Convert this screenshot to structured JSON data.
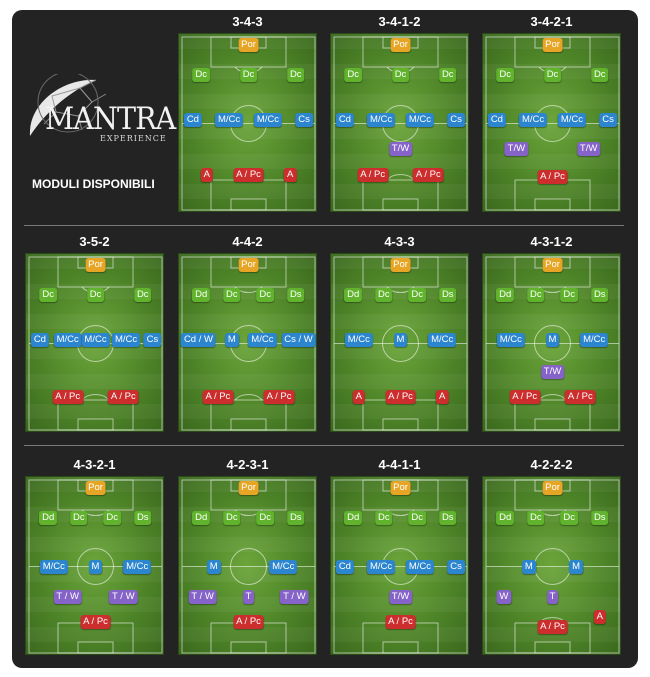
{
  "brand": {
    "logo_text": "MANTRA",
    "logo_subtext": "EXPERIENCE"
  },
  "heading": "MODULI DISPONIBILI",
  "colors": {
    "por": "#e7a526",
    "dc": "#61b32e",
    "mid": "#2c86cf",
    "tw": "#8563c9",
    "att": "#cc2e2e",
    "panel": "#232323",
    "grass": "#4c8227"
  },
  "formations": [
    {
      "name": "3-4-3",
      "rows": [
        {
          "y": 0.06,
          "roles": [
            {
              "label": "Por",
              "x": 0.5,
              "type": "por"
            }
          ]
        },
        {
          "y": 0.23,
          "roles": [
            {
              "label": "Dc",
              "x": 0.16,
              "type": "dc"
            },
            {
              "label": "Dc",
              "x": 0.5,
              "type": "dc"
            },
            {
              "label": "Dc",
              "x": 0.84,
              "type": "dc"
            }
          ]
        },
        {
          "y": 0.48,
          "roles": [
            {
              "label": "Cd",
              "x": 0.1,
              "type": "mid"
            },
            {
              "label": "M/Cc",
              "x": 0.36,
              "type": "mid"
            },
            {
              "label": "M/Cc",
              "x": 0.64,
              "type": "mid"
            },
            {
              "label": "Cs",
              "x": 0.9,
              "type": "mid"
            }
          ]
        },
        {
          "y": 0.79,
          "roles": [
            {
              "label": "A",
              "x": 0.2,
              "type": "att"
            },
            {
              "label": "A / Pc",
              "x": 0.5,
              "type": "att"
            },
            {
              "label": "A",
              "x": 0.8,
              "type": "att"
            }
          ]
        }
      ]
    },
    {
      "name": "3-4-1-2",
      "rows": [
        {
          "y": 0.06,
          "roles": [
            {
              "label": "Por",
              "x": 0.5,
              "type": "por"
            }
          ]
        },
        {
          "y": 0.23,
          "roles": [
            {
              "label": "Dc",
              "x": 0.16,
              "type": "dc"
            },
            {
              "label": "Dc",
              "x": 0.5,
              "type": "dc"
            },
            {
              "label": "Dc",
              "x": 0.84,
              "type": "dc"
            }
          ]
        },
        {
          "y": 0.48,
          "roles": [
            {
              "label": "Cd",
              "x": 0.1,
              "type": "mid"
            },
            {
              "label": "M/Cc",
              "x": 0.36,
              "type": "mid"
            },
            {
              "label": "M/Cc",
              "x": 0.64,
              "type": "mid"
            },
            {
              "label": "Cs",
              "x": 0.9,
              "type": "mid"
            }
          ]
        },
        {
          "y": 0.64,
          "roles": [
            {
              "label": "T/W",
              "x": 0.5,
              "type": "tw"
            }
          ]
        },
        {
          "y": 0.79,
          "roles": [
            {
              "label": "A / Pc",
              "x": 0.3,
              "type": "att"
            },
            {
              "label": "A / Pc",
              "x": 0.7,
              "type": "att"
            }
          ]
        }
      ]
    },
    {
      "name": "3-4-2-1",
      "rows": [
        {
          "y": 0.06,
          "roles": [
            {
              "label": "Por",
              "x": 0.5,
              "type": "por"
            }
          ]
        },
        {
          "y": 0.23,
          "roles": [
            {
              "label": "Dc",
              "x": 0.16,
              "type": "dc"
            },
            {
              "label": "Dc",
              "x": 0.5,
              "type": "dc"
            },
            {
              "label": "Dc",
              "x": 0.84,
              "type": "dc"
            }
          ]
        },
        {
          "y": 0.48,
          "roles": [
            {
              "label": "Cd",
              "x": 0.1,
              "type": "mid"
            },
            {
              "label": "M/Cc",
              "x": 0.36,
              "type": "mid"
            },
            {
              "label": "M/Cc",
              "x": 0.64,
              "type": "mid"
            },
            {
              "label": "Cs",
              "x": 0.9,
              "type": "mid"
            }
          ]
        },
        {
          "y": 0.64,
          "roles": [
            {
              "label": "T/W",
              "x": 0.24,
              "type": "tw"
            },
            {
              "label": "T/W",
              "x": 0.76,
              "type": "tw"
            }
          ]
        },
        {
          "y": 0.8,
          "roles": [
            {
              "label": "A / Pc",
              "x": 0.5,
              "type": "att"
            }
          ]
        }
      ]
    },
    {
      "name": "3-5-2",
      "rows": [
        {
          "y": 0.06,
          "roles": [
            {
              "label": "Por",
              "x": 0.5,
              "type": "por"
            }
          ]
        },
        {
          "y": 0.23,
          "roles": [
            {
              "label": "Dc",
              "x": 0.16,
              "type": "dc"
            },
            {
              "label": "Dc",
              "x": 0.5,
              "type": "dc"
            },
            {
              "label": "Dc",
              "x": 0.84,
              "type": "dc"
            }
          ]
        },
        {
          "y": 0.48,
          "roles": [
            {
              "label": "Cd",
              "x": 0.1,
              "type": "mid"
            },
            {
              "label": "M/Cc",
              "x": 0.3,
              "type": "mid"
            },
            {
              "label": "M/Cc",
              "x": 0.5,
              "type": "mid"
            },
            {
              "label": "M/Cc",
              "x": 0.72,
              "type": "mid"
            },
            {
              "label": "Cs",
              "x": 0.91,
              "type": "mid"
            }
          ]
        },
        {
          "y": 0.8,
          "roles": [
            {
              "label": "A / Pc",
              "x": 0.3,
              "type": "att"
            },
            {
              "label": "A / Pc",
              "x": 0.7,
              "type": "att"
            }
          ]
        }
      ]
    },
    {
      "name": "4-4-2",
      "rows": [
        {
          "y": 0.06,
          "roles": [
            {
              "label": "Por",
              "x": 0.5,
              "type": "por"
            }
          ]
        },
        {
          "y": 0.23,
          "roles": [
            {
              "label": "Dd",
              "x": 0.16,
              "type": "dc"
            },
            {
              "label": "Dc",
              "x": 0.38,
              "type": "dc"
            },
            {
              "label": "Dc",
              "x": 0.62,
              "type": "dc"
            },
            {
              "label": "Ds",
              "x": 0.84,
              "type": "dc"
            }
          ]
        },
        {
          "y": 0.48,
          "roles": [
            {
              "label": "Cd / W",
              "x": 0.14,
              "type": "mid"
            },
            {
              "label": "M",
              "x": 0.38,
              "type": "mid"
            },
            {
              "label": "M/Cc",
              "x": 0.6,
              "type": "mid"
            },
            {
              "label": "Cs / W",
              "x": 0.86,
              "type": "mid"
            }
          ]
        },
        {
          "y": 0.8,
          "roles": [
            {
              "label": "A / Pc",
              "x": 0.28,
              "type": "att"
            },
            {
              "label": "A / Pc",
              "x": 0.72,
              "type": "att"
            }
          ]
        }
      ]
    },
    {
      "name": "4-3-3",
      "rows": [
        {
          "y": 0.06,
          "roles": [
            {
              "label": "Por",
              "x": 0.5,
              "type": "por"
            }
          ]
        },
        {
          "y": 0.23,
          "roles": [
            {
              "label": "Dd",
              "x": 0.16,
              "type": "dc"
            },
            {
              "label": "Dc",
              "x": 0.38,
              "type": "dc"
            },
            {
              "label": "Dc",
              "x": 0.62,
              "type": "dc"
            },
            {
              "label": "Ds",
              "x": 0.84,
              "type": "dc"
            }
          ]
        },
        {
          "y": 0.48,
          "roles": [
            {
              "label": "M/Cc",
              "x": 0.2,
              "type": "mid"
            },
            {
              "label": "M",
              "x": 0.5,
              "type": "mid"
            },
            {
              "label": "M/Cc",
              "x": 0.8,
              "type": "mid"
            }
          ]
        },
        {
          "y": 0.8,
          "roles": [
            {
              "label": "A",
              "x": 0.2,
              "type": "att"
            },
            {
              "label": "A / Pc",
              "x": 0.5,
              "type": "att"
            },
            {
              "label": "A",
              "x": 0.8,
              "type": "att"
            }
          ]
        }
      ]
    },
    {
      "name": "4-3-1-2",
      "rows": [
        {
          "y": 0.06,
          "roles": [
            {
              "label": "Por",
              "x": 0.5,
              "type": "por"
            }
          ]
        },
        {
          "y": 0.23,
          "roles": [
            {
              "label": "Dd",
              "x": 0.16,
              "type": "dc"
            },
            {
              "label": "Dc",
              "x": 0.38,
              "type": "dc"
            },
            {
              "label": "Dc",
              "x": 0.62,
              "type": "dc"
            },
            {
              "label": "Ds",
              "x": 0.84,
              "type": "dc"
            }
          ]
        },
        {
          "y": 0.48,
          "roles": [
            {
              "label": "M/Cc",
              "x": 0.2,
              "type": "mid"
            },
            {
              "label": "M",
              "x": 0.5,
              "type": "mid"
            },
            {
              "label": "M/Cc",
              "x": 0.8,
              "type": "mid"
            }
          ]
        },
        {
          "y": 0.66,
          "roles": [
            {
              "label": "T/W",
              "x": 0.5,
              "type": "tw"
            }
          ]
        },
        {
          "y": 0.8,
          "roles": [
            {
              "label": "A / Pc",
              "x": 0.3,
              "type": "att"
            },
            {
              "label": "A / Pc",
              "x": 0.7,
              "type": "att"
            }
          ]
        }
      ]
    },
    {
      "name": "4-3-2-1",
      "rows": [
        {
          "y": 0.06,
          "roles": [
            {
              "label": "Por",
              "x": 0.5,
              "type": "por"
            }
          ]
        },
        {
          "y": 0.23,
          "roles": [
            {
              "label": "Dd",
              "x": 0.16,
              "type": "dc"
            },
            {
              "label": "Dc",
              "x": 0.38,
              "type": "dc"
            },
            {
              "label": "Dc",
              "x": 0.62,
              "type": "dc"
            },
            {
              "label": "Ds",
              "x": 0.84,
              "type": "dc"
            }
          ]
        },
        {
          "y": 0.5,
          "roles": [
            {
              "label": "M/Cc",
              "x": 0.2,
              "type": "mid"
            },
            {
              "label": "M",
              "x": 0.5,
              "type": "mid"
            },
            {
              "label": "M/Cc",
              "x": 0.8,
              "type": "mid"
            }
          ]
        },
        {
          "y": 0.67,
          "roles": [
            {
              "label": "T / W",
              "x": 0.3,
              "type": "tw"
            },
            {
              "label": "T / W",
              "x": 0.7,
              "type": "tw"
            }
          ]
        },
        {
          "y": 0.81,
          "roles": [
            {
              "label": "A / Pc",
              "x": 0.5,
              "type": "att"
            }
          ]
        }
      ]
    },
    {
      "name": "4-2-3-1",
      "rows": [
        {
          "y": 0.06,
          "roles": [
            {
              "label": "Por",
              "x": 0.5,
              "type": "por"
            }
          ]
        },
        {
          "y": 0.23,
          "roles": [
            {
              "label": "Dd",
              "x": 0.16,
              "type": "dc"
            },
            {
              "label": "Dc",
              "x": 0.38,
              "type": "dc"
            },
            {
              "label": "Dc",
              "x": 0.62,
              "type": "dc"
            },
            {
              "label": "Ds",
              "x": 0.84,
              "type": "dc"
            }
          ]
        },
        {
          "y": 0.5,
          "roles": [
            {
              "label": "M",
              "x": 0.25,
              "type": "mid"
            },
            {
              "label": "M/Cc",
              "x": 0.75,
              "type": "mid"
            }
          ]
        },
        {
          "y": 0.67,
          "roles": [
            {
              "label": "T / W",
              "x": 0.17,
              "type": "tw"
            },
            {
              "label": "T",
              "x": 0.5,
              "type": "tw"
            },
            {
              "label": "T / W",
              "x": 0.83,
              "type": "tw"
            }
          ]
        },
        {
          "y": 0.81,
          "roles": [
            {
              "label": "A / Pc",
              "x": 0.5,
              "type": "att"
            }
          ]
        }
      ]
    },
    {
      "name": "4-4-1-1",
      "rows": [
        {
          "y": 0.06,
          "roles": [
            {
              "label": "Por",
              "x": 0.5,
              "type": "por"
            }
          ]
        },
        {
          "y": 0.23,
          "roles": [
            {
              "label": "Dd",
              "x": 0.16,
              "type": "dc"
            },
            {
              "label": "Dc",
              "x": 0.38,
              "type": "dc"
            },
            {
              "label": "Dc",
              "x": 0.62,
              "type": "dc"
            },
            {
              "label": "Ds",
              "x": 0.84,
              "type": "dc"
            }
          ]
        },
        {
          "y": 0.5,
          "roles": [
            {
              "label": "Cd",
              "x": 0.1,
              "type": "mid"
            },
            {
              "label": "M/Cc",
              "x": 0.36,
              "type": "mid"
            },
            {
              "label": "M/Cc",
              "x": 0.64,
              "type": "mid"
            },
            {
              "label": "Cs",
              "x": 0.9,
              "type": "mid"
            }
          ]
        },
        {
          "y": 0.67,
          "roles": [
            {
              "label": "T/W",
              "x": 0.5,
              "type": "tw"
            }
          ]
        },
        {
          "y": 0.81,
          "roles": [
            {
              "label": "A / Pc",
              "x": 0.5,
              "type": "att"
            }
          ]
        }
      ]
    },
    {
      "name": "4-2-2-2",
      "rows": [
        {
          "y": 0.06,
          "roles": [
            {
              "label": "Por",
              "x": 0.5,
              "type": "por"
            }
          ]
        },
        {
          "y": 0.23,
          "roles": [
            {
              "label": "Dd",
              "x": 0.16,
              "type": "dc"
            },
            {
              "label": "Dc",
              "x": 0.38,
              "type": "dc"
            },
            {
              "label": "Dc",
              "x": 0.62,
              "type": "dc"
            },
            {
              "label": "Ds",
              "x": 0.84,
              "type": "dc"
            }
          ]
        },
        {
          "y": 0.5,
          "roles": [
            {
              "label": "M",
              "x": 0.33,
              "type": "mid"
            },
            {
              "label": "M",
              "x": 0.67,
              "type": "mid"
            }
          ]
        },
        {
          "y": 0.67,
          "roles": [
            {
              "label": "W",
              "x": 0.15,
              "type": "tw"
            },
            {
              "label": "T",
              "x": 0.5,
              "type": "tw"
            }
          ]
        },
        {
          "y": 0.78,
          "roles": [
            {
              "label": "A",
              "x": 0.84,
              "type": "att"
            }
          ]
        },
        {
          "y": 0.84,
          "roles": [
            {
              "label": "A / Pc",
              "x": 0.5,
              "type": "att"
            }
          ]
        }
      ]
    }
  ]
}
